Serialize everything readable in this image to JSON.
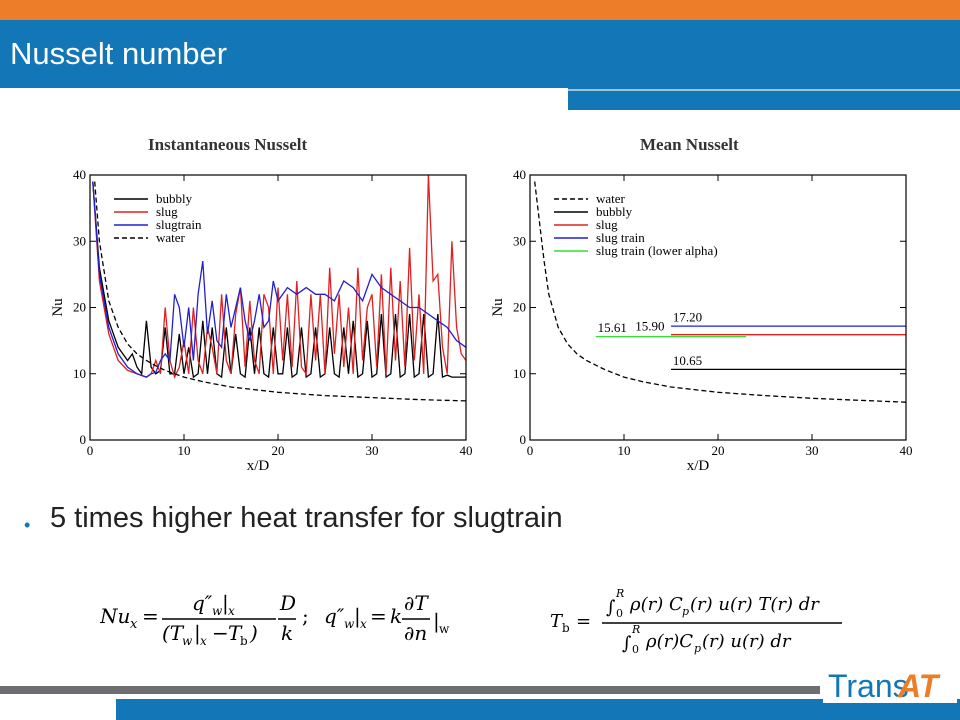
{
  "header": {
    "title": "Nusselt number"
  },
  "colors": {
    "orange": "#ee7d2a",
    "blue": "#1276b7",
    "bubbly": "#000000",
    "slug": "#e02020",
    "slugtrain": "#2020d0",
    "lower_alpha": "#33dd33",
    "water": "#000000"
  },
  "bullet": {
    "text": "5 times higher heat transfer for slugtrain"
  },
  "equations": {
    "nusselt": "Nu_x = (q''_w|_x / (T_w|_x − T_b)) · D/k ;   q''_w|_x = k ∂T/∂n|_w",
    "bulk_temperature": "T_b = ∫_0^R ρ(r) C_p(r) u(r) T(r) dr / ∫_0^R ρ(r) C_p(r) u(r) dr"
  },
  "logo": {
    "part1": "Trans",
    "part2": "AT"
  },
  "chart_data": [
    {
      "type": "line",
      "title": "Instantaneous Nusselt",
      "xlabel": "x/D",
      "ylabel": "Nu",
      "xlim": [
        0,
        40
      ],
      "ylim": [
        0,
        40
      ],
      "xticks": [
        0,
        10,
        20,
        30,
        40
      ],
      "yticks": [
        0,
        10,
        20,
        30,
        40
      ],
      "legend_position": "top-left",
      "series": [
        {
          "name": "bubbly",
          "color": "#000000",
          "dash": false,
          "x": [
            0.3,
            1,
            2,
            3,
            4,
            4.5,
            5,
            5.5,
            6,
            6.5,
            7,
            7.5,
            8,
            8.5,
            9,
            9.5,
            10,
            10.5,
            11,
            11.5,
            12,
            12.5,
            13,
            13.5,
            14,
            14.5,
            15,
            15.5,
            16,
            16.5,
            17,
            17.5,
            18,
            18.5,
            19,
            19.5,
            20,
            20.5,
            21,
            21.5,
            22,
            22.5,
            23,
            23.5,
            24,
            24.5,
            25,
            25.5,
            26,
            26.5,
            27,
            27.5,
            28,
            28.5,
            29,
            29.5,
            30,
            30.5,
            31,
            31.5,
            32,
            32.5,
            33,
            33.5,
            34,
            34.5,
            35,
            35.5,
            36,
            36.5,
            37,
            37.5,
            38,
            38.5,
            39,
            39.5,
            40
          ],
          "y": [
            39,
            26,
            18,
            14,
            12,
            13,
            11,
            10,
            18,
            11,
            10,
            10.5,
            17,
            10,
            10,
            16,
            10,
            14,
            9.5,
            10,
            18,
            10,
            17,
            10,
            9.5,
            17,
            10,
            16,
            10,
            9.5,
            17,
            10,
            17,
            10,
            9.5,
            17,
            10,
            10,
            17,
            9.5,
            10,
            17,
            9.5,
            10,
            17,
            9.5,
            10,
            17,
            10,
            9.5,
            17,
            10,
            18,
            9.5,
            10,
            18,
            9.5,
            10,
            19,
            9.5,
            10,
            19,
            9.5,
            10,
            19,
            9.5,
            10,
            19,
            9.5,
            10,
            19,
            9.5,
            9.8,
            9.5,
            9.5,
            9.5,
            9.5
          ]
        },
        {
          "name": "slug",
          "color": "#e02020",
          "dash": false,
          "x": [
            0.3,
            1,
            2,
            3,
            4,
            5,
            6,
            6.5,
            7,
            7.5,
            8,
            8.5,
            9,
            9.5,
            10,
            10.5,
            11,
            11.5,
            12,
            12.5,
            13,
            13.5,
            14,
            14.5,
            15,
            15.5,
            16,
            16.5,
            17,
            17.5,
            18,
            18.5,
            19,
            19.5,
            20,
            20.5,
            21,
            21.5,
            22,
            22.5,
            23,
            23.5,
            24,
            24.5,
            25,
            25.5,
            26,
            26.5,
            27,
            27.5,
            28,
            28.5,
            29,
            29.5,
            30,
            30.5,
            31,
            31.5,
            32,
            32.5,
            33,
            33.5,
            34,
            34.5,
            35,
            35.5,
            36,
            36.5,
            37,
            37.5,
            38,
            38.5,
            39,
            39.5,
            40
          ],
          "y": [
            39,
            24,
            16,
            12,
            10.5,
            10,
            9.5,
            10,
            12,
            10,
            20,
            12,
            9.5,
            11,
            15,
            10,
            20,
            12,
            10,
            17,
            14,
            10,
            22,
            12,
            10,
            19,
            23,
            11,
            21,
            12,
            10,
            22,
            20,
            10,
            23,
            12,
            22,
            11,
            24,
            11,
            10,
            22,
            12,
            22,
            10,
            26,
            13,
            22,
            11,
            20,
            10,
            26,
            12,
            20,
            22,
            11,
            25,
            10,
            26,
            12,
            24,
            11,
            29,
            12,
            22,
            10,
            40,
            24,
            25,
            14,
            10,
            30,
            17,
            13,
            12
          ]
        },
        {
          "name": "slugtrain",
          "color": "#2020d0",
          "dash": false,
          "x": [
            0.3,
            1,
            2,
            3,
            4,
            5,
            6,
            6.5,
            7,
            7.5,
            8,
            8.5,
            9,
            9.5,
            10,
            10.5,
            11,
            11.5,
            12,
            12.5,
            13,
            13.5,
            14,
            14.5,
            15,
            15.5,
            16,
            16.5,
            17,
            17.5,
            18,
            18.5,
            19,
            19.5,
            20,
            21,
            22,
            23,
            24,
            25,
            26,
            27,
            28,
            29,
            30,
            31,
            32,
            33,
            34,
            35,
            36,
            37,
            38,
            39,
            40
          ],
          "y": [
            39,
            25,
            17,
            13,
            11,
            10,
            9.5,
            10,
            10.2,
            12,
            13,
            12,
            22,
            20,
            14,
            20,
            12,
            22,
            27,
            16,
            21,
            15,
            14,
            22,
            17,
            20,
            23,
            18,
            15,
            18,
            22,
            17,
            18,
            24,
            21,
            23,
            22,
            23,
            22,
            22,
            21,
            24,
            23,
            21,
            25,
            23,
            22,
            21,
            20,
            20,
            19,
            18,
            17,
            15,
            14
          ]
        },
        {
          "name": "water",
          "color": "#000000",
          "dash": true,
          "x": [
            0.5,
            1,
            2,
            3,
            4,
            5,
            6,
            7,
            8,
            10,
            12,
            15,
            20,
            25,
            30,
            35,
            40
          ],
          "y": [
            39,
            30,
            21,
            17,
            14.5,
            13,
            12,
            11.2,
            10.5,
            9.5,
            8.8,
            8.0,
            7.2,
            6.7,
            6.4,
            6.1,
            5.9
          ]
        }
      ]
    },
    {
      "type": "line",
      "title": "Mean Nusselt",
      "xlabel": "x/D",
      "ylabel": "Nu",
      "xlim": [
        0,
        40
      ],
      "ylim": [
        0,
        40
      ],
      "xticks": [
        0,
        10,
        20,
        30,
        40
      ],
      "yticks": [
        0,
        10,
        20,
        30,
        40
      ],
      "legend_position": "top-left",
      "series": [
        {
          "name": "water",
          "color": "#000000",
          "dash": true,
          "x": [
            0.5,
            1,
            1.5,
            2,
            3,
            4,
            5,
            6,
            8,
            10,
            12,
            15,
            20,
            25,
            30,
            35,
            40
          ],
          "y": [
            39,
            33,
            27,
            22,
            17,
            14.5,
            13,
            12,
            10.6,
            9.5,
            8.8,
            8.0,
            7.2,
            6.7,
            6.3,
            6.0,
            5.7
          ]
        },
        {
          "name": "bubbly",
          "color": "#000000",
          "dash": false,
          "x": [
            15,
            40
          ],
          "y": [
            10.65,
            10.65
          ]
        },
        {
          "name": "slug",
          "color": "#e02020",
          "dash": false,
          "x": [
            15,
            40
          ],
          "y": [
            15.9,
            15.9
          ]
        },
        {
          "name": "slug train",
          "color": "#2020d0",
          "dash": false,
          "x": [
            15,
            40
          ],
          "y": [
            17.2,
            17.2
          ]
        },
        {
          "name": "slug train (lower alpha)",
          "color": "#33dd33",
          "dash": false,
          "x": [
            7,
            23
          ],
          "y": [
            15.61,
            15.61
          ]
        }
      ],
      "annotations": [
        {
          "text": "15.61",
          "x": 7.2,
          "y": 16.3
        },
        {
          "text": "15.90",
          "x": 11.2,
          "y": 16.5
        },
        {
          "text": "17.20",
          "x": 15.2,
          "y": 17.9
        },
        {
          "text": "10.65",
          "x": 15.2,
          "y": 11.3
        }
      ]
    }
  ]
}
